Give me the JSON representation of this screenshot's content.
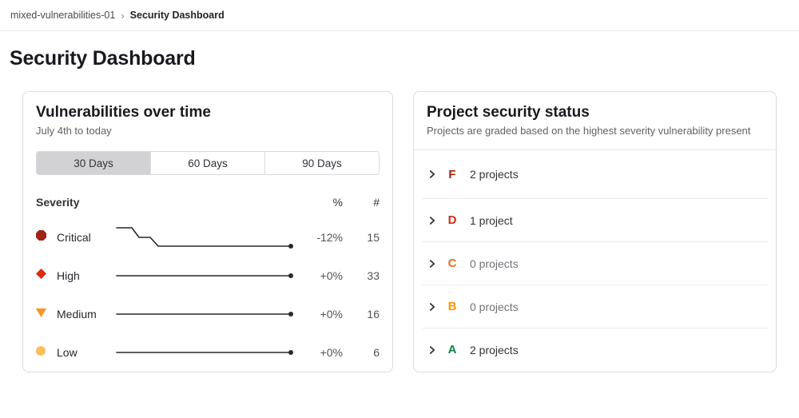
{
  "breadcrumb": {
    "project": "mixed-vulnerabilities-01",
    "separator": "›",
    "current": "Security Dashboard"
  },
  "page": {
    "title": "Security Dashboard"
  },
  "vulns_card": {
    "title": "Vulnerabilities over time",
    "subtitle": "July 4th to today",
    "range_buttons": [
      {
        "label": "30 Days",
        "selected": true
      },
      {
        "label": "60 Days",
        "selected": false
      },
      {
        "label": "90 Days",
        "selected": false
      }
    ],
    "table": {
      "headers": {
        "severity": "Severity",
        "percent": "%",
        "count": "#"
      },
      "rows": [
        {
          "severity": "Critical",
          "icon": "octagon",
          "color": "#9e2318",
          "trend": "down",
          "percent": "-12%",
          "count": "15"
        },
        {
          "severity": "High",
          "icon": "diamond",
          "color": "#dd2b0e",
          "trend": "flat",
          "percent": "+0%",
          "count": "33"
        },
        {
          "severity": "Medium",
          "icon": "triangle-down",
          "color": "#fa9422",
          "trend": "flat",
          "percent": "+0%",
          "count": "16"
        },
        {
          "severity": "Low",
          "icon": "circle",
          "color": "#fcbe5c",
          "trend": "flat",
          "percent": "+0%",
          "count": "6"
        }
      ]
    }
  },
  "status_card": {
    "title": "Project security status",
    "subtitle": "Projects are graded based on the highest severity vulnerability present",
    "grades": [
      {
        "grade": "F",
        "color": "#a02115",
        "label": "2 projects",
        "muted": false
      },
      {
        "grade": "D",
        "color": "#c82e14",
        "label": "1 project",
        "muted": false
      },
      {
        "grade": "C",
        "color": "#eb6e1e",
        "label": "0 projects",
        "muted": true
      },
      {
        "grade": "B",
        "color": "#fc9403",
        "label": "0 projects",
        "muted": true
      },
      {
        "grade": "A",
        "color": "#108548",
        "label": "2 projects",
        "muted": false
      }
    ]
  },
  "chart_data": {
    "type": "line",
    "x_range": "July 4th to today (30 days)",
    "sparklines": [
      {
        "name": "Critical",
        "start": 17,
        "end": 15,
        "change_percent": -12,
        "shape": "flat at start, two small step-downs early, then flat at 15 to today"
      },
      {
        "name": "High",
        "start": 33,
        "end": 33,
        "change_percent": 0,
        "shape": "flat"
      },
      {
        "name": "Medium",
        "start": 16,
        "end": 16,
        "change_percent": 0,
        "shape": "flat"
      },
      {
        "name": "Low",
        "start": 6,
        "end": 6,
        "change_percent": 0,
        "shape": "flat"
      }
    ]
  }
}
